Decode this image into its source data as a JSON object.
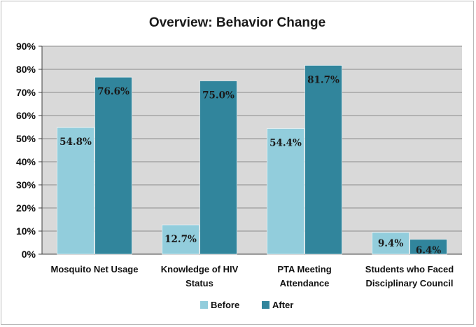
{
  "chart_data": {
    "type": "bar",
    "title": "Overview: Behavior Change",
    "xlabel": "",
    "ylabel": "",
    "ylim": [
      0,
      90
    ],
    "ytick_step": 10,
    "ytick_format": "percent",
    "grid": true,
    "legend_position": "bottom-center",
    "categories": [
      [
        "Mosquito Net Usage"
      ],
      [
        "Knowledge of HIV",
        "Status"
      ],
      [
        "PTA Meeting",
        "Attendance"
      ],
      [
        "Students who Faced",
        "Disciplinary Council"
      ]
    ],
    "series": [
      {
        "name": "Before",
        "color": "#92cddc",
        "values": [
          54.8,
          12.7,
          54.4,
          9.4
        ],
        "labels": [
          "54.8%",
          "12.7%",
          "54.4%",
          "9.4%"
        ]
      },
      {
        "name": "After",
        "color": "#31859c",
        "values": [
          76.6,
          75.0,
          81.7,
          6.4
        ],
        "labels": [
          "76.6%",
          "75.0%",
          "81.7%",
          "6.4%"
        ]
      }
    ],
    "colors": {
      "plot_background": "#d9d9d9",
      "gridline": "#8c8c8c",
      "axis": "#404040"
    }
  }
}
